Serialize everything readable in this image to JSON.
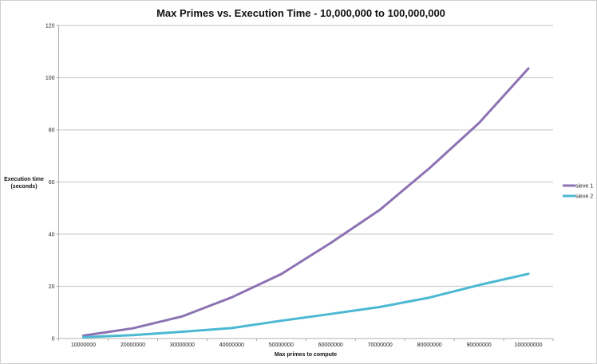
{
  "chart_data": {
    "type": "line",
    "title": "Max Primes vs. Execution Time - 10,000,000 to 100,000,000",
    "xlabel": "Max primes to compute",
    "ylabel": [
      "Execution time",
      "(seconds)"
    ],
    "categories": [
      "10000000",
      "20000000",
      "30000000",
      "40000000",
      "50000000",
      "60000000",
      "70000000",
      "80000000",
      "90000000",
      "100000000"
    ],
    "ylim": [
      0,
      120
    ],
    "yticks": [
      "0",
      "20",
      "40",
      "60",
      "80",
      "100",
      "120"
    ],
    "grid": "horizontal",
    "legend_position": "right",
    "series": [
      {
        "name": "sieve 1",
        "color": "#8c72b3",
        "values": [
          1.1,
          3.9,
          8.5,
          15.8,
          24.7,
          36.6,
          49.4,
          65.3,
          82.6,
          103.5
        ]
      },
      {
        "name": "sieve 2",
        "color": "#4bb8d2",
        "values": [
          0.5,
          1.3,
          2.6,
          4.0,
          6.8,
          9.4,
          12.1,
          15.7,
          20.5,
          24.8
        ]
      }
    ]
  }
}
